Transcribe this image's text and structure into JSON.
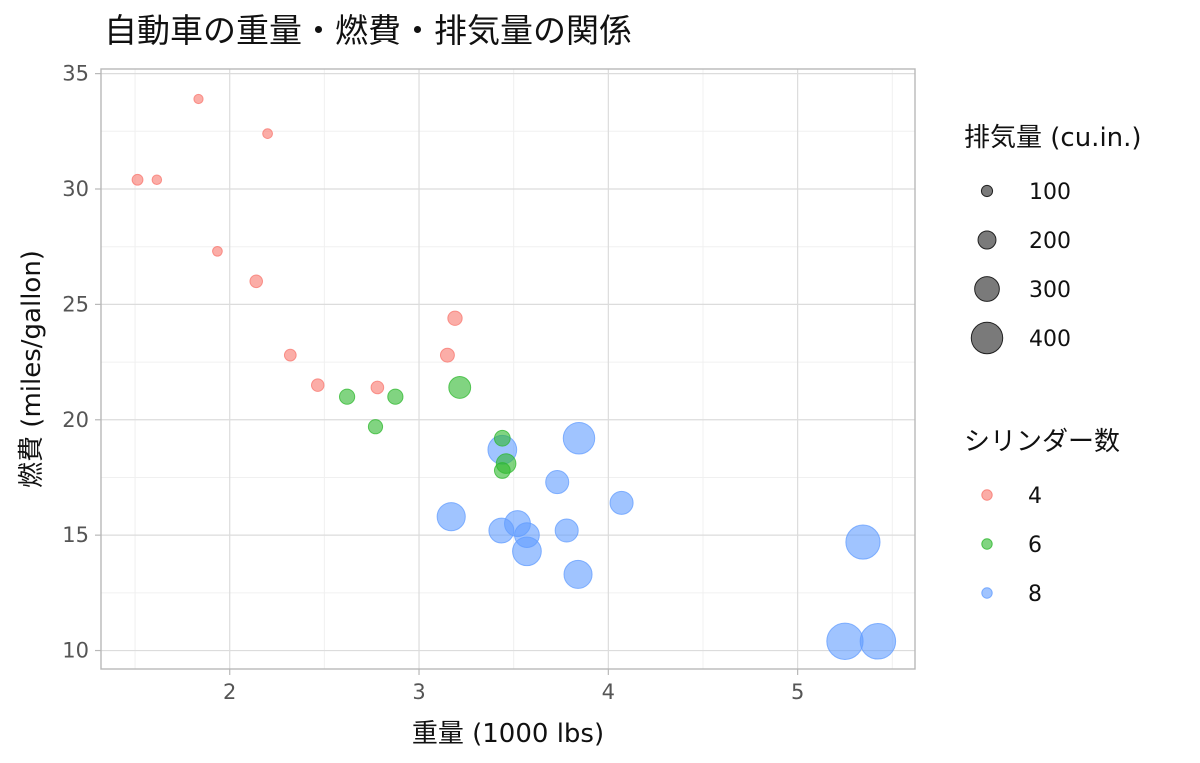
{
  "chart_data": {
    "type": "scatter",
    "title": "自動車の重量・燃費・排気量の関係",
    "xlabel": "重量 (1000 lbs)",
    "ylabel": "燃費 (miles/gallon)",
    "xlim": [
      1.32,
      5.62
    ],
    "ylim": [
      9.2,
      35.2
    ],
    "xticks": [
      2,
      3,
      4,
      5
    ],
    "yticks": [
      10,
      15,
      20,
      25,
      30,
      35
    ],
    "grid": true,
    "size_legend": {
      "title": "排気量 (cu.in.)",
      "entries": [
        100,
        200,
        300,
        400
      ]
    },
    "color_legend": {
      "title": "シリンダー数",
      "entries": [
        {
          "label": "4",
          "color": "#F8766D"
        },
        {
          "label": "6",
          "color": "#2DB82D"
        },
        {
          "label": "8",
          "color": "#619CFF"
        }
      ]
    },
    "points": [
      {
        "wt": 2.32,
        "mpg": 22.8,
        "cyl": "4",
        "disp": 108
      },
      {
        "wt": 3.19,
        "mpg": 24.4,
        "cyl": "4",
        "disp": 146.7
      },
      {
        "wt": 3.15,
        "mpg": 22.8,
        "cyl": "4",
        "disp": 140.8
      },
      {
        "wt": 2.2,
        "mpg": 32.4,
        "cyl": "4",
        "disp": 78.7
      },
      {
        "wt": 1.615,
        "mpg": 30.4,
        "cyl": "4",
        "disp": 75.7
      },
      {
        "wt": 1.835,
        "mpg": 33.9,
        "cyl": "4",
        "disp": 71.1
      },
      {
        "wt": 2.465,
        "mpg": 21.5,
        "cyl": "4",
        "disp": 120.1
      },
      {
        "wt": 1.935,
        "mpg": 27.3,
        "cyl": "4",
        "disp": 79
      },
      {
        "wt": 2.14,
        "mpg": 26.0,
        "cyl": "4",
        "disp": 120.3
      },
      {
        "wt": 1.513,
        "mpg": 30.4,
        "cyl": "4",
        "disp": 95.1
      },
      {
        "wt": 2.78,
        "mpg": 21.4,
        "cyl": "4",
        "disp": 121
      },
      {
        "wt": 2.62,
        "mpg": 21.0,
        "cyl": "6",
        "disp": 160
      },
      {
        "wt": 2.875,
        "mpg": 21.0,
        "cyl": "6",
        "disp": 160
      },
      {
        "wt": 3.215,
        "mpg": 21.4,
        "cyl": "6",
        "disp": 258
      },
      {
        "wt": 3.44,
        "mpg": 19.2,
        "cyl": "6",
        "disp": 167.6
      },
      {
        "wt": 3.44,
        "mpg": 17.8,
        "cyl": "6",
        "disp": 167.6
      },
      {
        "wt": 3.46,
        "mpg": 18.1,
        "cyl": "6",
        "disp": 225
      },
      {
        "wt": 2.77,
        "mpg": 19.7,
        "cyl": "6",
        "disp": 145
      },
      {
        "wt": 3.44,
        "mpg": 18.7,
        "cyl": "8",
        "disp": 360
      },
      {
        "wt": 3.57,
        "mpg": 14.3,
        "cyl": "8",
        "disp": 360
      },
      {
        "wt": 4.07,
        "mpg": 16.4,
        "cyl": "8",
        "disp": 275.8
      },
      {
        "wt": 3.73,
        "mpg": 17.3,
        "cyl": "8",
        "disp": 275.8
      },
      {
        "wt": 3.78,
        "mpg": 15.2,
        "cyl": "8",
        "disp": 275.8
      },
      {
        "wt": 5.25,
        "mpg": 10.4,
        "cyl": "8",
        "disp": 472
      },
      {
        "wt": 5.424,
        "mpg": 10.4,
        "cyl": "8",
        "disp": 460
      },
      {
        "wt": 5.345,
        "mpg": 14.7,
        "cyl": "8",
        "disp": 440
      },
      {
        "wt": 3.52,
        "mpg": 15.5,
        "cyl": "8",
        "disp": 318
      },
      {
        "wt": 3.435,
        "mpg": 15.2,
        "cyl": "8",
        "disp": 304
      },
      {
        "wt": 3.84,
        "mpg": 13.3,
        "cyl": "8",
        "disp": 350
      },
      {
        "wt": 3.845,
        "mpg": 19.2,
        "cyl": "8",
        "disp": 400
      },
      {
        "wt": 3.17,
        "mpg": 15.8,
        "cyl": "8",
        "disp": 351
      },
      {
        "wt": 3.57,
        "mpg": 15.0,
        "cyl": "8",
        "disp": 301
      }
    ]
  }
}
